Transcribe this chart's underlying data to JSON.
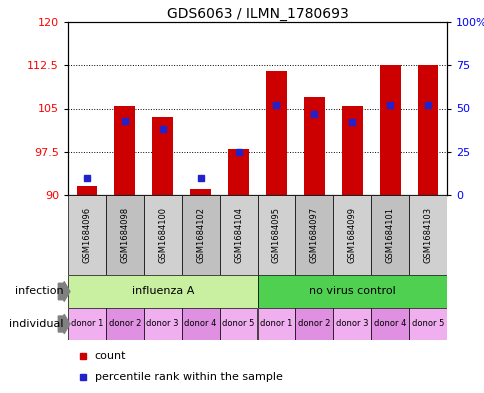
{
  "title": "GDS6063 / ILMN_1780693",
  "samples": [
    "GSM1684096",
    "GSM1684098",
    "GSM1684100",
    "GSM1684102",
    "GSM1684104",
    "GSM1684095",
    "GSM1684097",
    "GSM1684099",
    "GSM1684101",
    "GSM1684103"
  ],
  "count_values": [
    91.5,
    105.5,
    103.5,
    91.0,
    98.0,
    111.5,
    107.0,
    105.5,
    112.5,
    112.5
  ],
  "percentile_values": [
    10,
    43,
    38,
    10,
    25,
    52,
    47,
    42,
    52,
    52
  ],
  "ylim_left": [
    90,
    120
  ],
  "ylim_right": [
    0,
    100
  ],
  "yticks_left": [
    90,
    97.5,
    105,
    112.5,
    120
  ],
  "yticks_right": [
    0,
    25,
    50,
    75,
    100
  ],
  "ytick_labels_left": [
    "90",
    "97.5",
    "105",
    "112.5",
    "120"
  ],
  "ytick_labels_right": [
    "0",
    "25",
    "50",
    "75",
    "100%"
  ],
  "bar_color": "#cc0000",
  "blue_color": "#2222cc",
  "bar_width": 0.55,
  "inf_color_light": "#c8f0a0",
  "inf_color_dark": "#50d050",
  "ind_color_light": "#f0b0f0",
  "ind_color_dark": "#e090e0",
  "sample_bg_colors": [
    "#d0d0d0",
    "#c0c0c0",
    "#d0d0d0",
    "#c0c0c0",
    "#d0d0d0",
    "#d0d0d0",
    "#c0c0c0",
    "#d0d0d0",
    "#c0c0c0",
    "#d0d0d0"
  ],
  "individual_labels": [
    "donor 1",
    "donor 2",
    "donor 3",
    "donor 4",
    "donor 5",
    "donor 1",
    "donor 2",
    "donor 3",
    "donor 4",
    "donor 5"
  ],
  "ind_bg_colors": [
    "#f0b0f0",
    "#e090e0",
    "#f0b0f0",
    "#e090e0",
    "#f0b0f0",
    "#f0b0f0",
    "#e090e0",
    "#f0b0f0",
    "#e090e0",
    "#f0b0f0"
  ]
}
